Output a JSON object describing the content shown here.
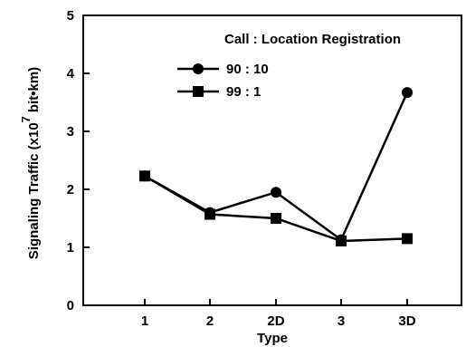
{
  "chart_data": {
    "type": "line",
    "title": "",
    "xlabel": "Type",
    "ylabel": "Signaling Traffic (x10 bit•km)",
    "ylabel_exponent": "7",
    "ylabel_main": "Signaling Traffic (x10",
    "ylabel_unit": "bit•km)",
    "categories": [
      "1",
      "2",
      "2D",
      "3",
      "3D"
    ],
    "ylim": [
      0,
      5
    ],
    "yticks": [
      0,
      1,
      2,
      3,
      4,
      5
    ],
    "grid": false,
    "legend_title": "Call : Location Registration",
    "legend_position": "top-right",
    "series": [
      {
        "name": "90 : 10",
        "marker": "circle",
        "values": [
          2.23,
          1.6,
          1.95,
          1.13,
          3.67
        ]
      },
      {
        "name": "99 : 1",
        "marker": "square",
        "values": [
          2.23,
          1.57,
          1.5,
          1.11,
          1.15
        ]
      }
    ],
    "colors": {
      "line": "#000000",
      "background": "#ffffff"
    }
  }
}
